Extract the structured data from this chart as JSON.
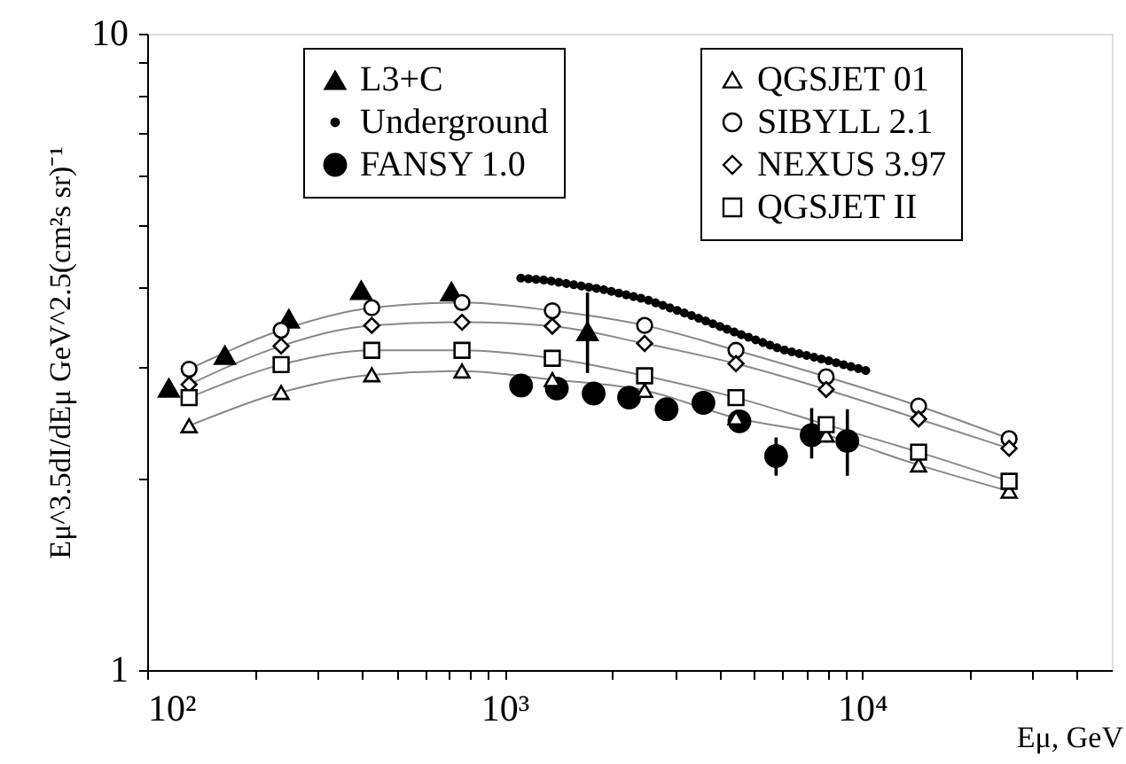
{
  "chart_data": {
    "type": "scatter",
    "xlabel": "Eμ, GeV",
    "ylabel": "Eμ^3.5dI/dEμ GeV^2.5(cm²s sr)⁻¹",
    "log": "xy",
    "xlim": [
      100,
      50000
    ],
    "ylim": [
      1,
      10
    ],
    "xticks": [
      {
        "value": 100,
        "label": "10²"
      },
      {
        "value": 200,
        "label": null
      },
      {
        "value": 300,
        "label": null
      },
      {
        "value": 400,
        "label": null
      },
      {
        "value": 500,
        "label": null
      },
      {
        "value": 600,
        "label": null
      },
      {
        "value": 700,
        "label": null
      },
      {
        "value": 800,
        "label": null
      },
      {
        "value": 900,
        "label": null
      },
      {
        "value": 1000,
        "label": "10³"
      },
      {
        "value": 2000,
        "label": null
      },
      {
        "value": 3000,
        "label": null
      },
      {
        "value": 4000,
        "label": null
      },
      {
        "value": 5000,
        "label": null
      },
      {
        "value": 6000,
        "label": null
      },
      {
        "value": 7000,
        "label": null
      },
      {
        "value": 8000,
        "label": null
      },
      {
        "value": 9000,
        "label": null
      },
      {
        "value": 10000,
        "label": "10⁴"
      },
      {
        "value": 20000,
        "label": null
      },
      {
        "value": 30000,
        "label": null
      },
      {
        "value": 40000,
        "label": null
      }
    ],
    "yticks": [
      1,
      {
        "value": 2,
        "label": null
      },
      {
        "value": 3,
        "label": null
      },
      {
        "value": 4,
        "label": null
      },
      {
        "value": 5,
        "label": null
      },
      {
        "value": 6,
        "label": null
      },
      {
        "value": 7,
        "label": null
      },
      {
        "value": 8,
        "label": null
      },
      {
        "value": 9,
        "label": null
      },
      10
    ],
    "grid": false,
    "legend": "top",
    "series": [
      {
        "name": "L3+C",
        "marker": "triangle",
        "color": "#000000",
        "x": [
          115,
          165,
          249,
          397,
          710,
          1706
        ],
        "values": [
          2.78,
          3.13,
          3.57,
          3.96,
          3.94,
          3.41
        ],
        "errors": [
          null,
          null,
          null,
          null,
          null,
          [
            2.93,
            3.92
          ]
        ]
      },
      {
        "name": "Underground",
        "type": "line",
        "line_style": "dotted",
        "marker": "none",
        "color": "#000000",
        "x": [
          1110,
          1300,
          1900,
          2500,
          3365,
          4500,
          5970,
          8110,
          10380
        ],
        "values": [
          4.13,
          4.1,
          3.96,
          3.82,
          3.6,
          3.38,
          3.19,
          3.06,
          2.95
        ]
      },
      {
        "name": "FANSY 1.0",
        "marker": "circle",
        "color": "#000000",
        "x": [
          1112,
          1400,
          1775,
          2230,
          2840,
          3600,
          4540,
          5750,
          7230,
          9100
        ],
        "values": [
          2.8,
          2.77,
          2.72,
          2.68,
          2.57,
          2.63,
          2.46,
          2.17,
          2.34,
          2.29
        ],
        "errors": [
          null,
          null,
          null,
          null,
          null,
          null,
          null,
          [
            2.02,
            2.32
          ],
          [
            2.15,
            2.58
          ],
          [
            2.02,
            2.57
          ]
        ]
      },
      {
        "name": "QGSJET 01",
        "type": "line",
        "marker": "triangle",
        "color": "#000000",
        "x": [
          131,
          237,
          425,
          760,
          1360,
          2465,
          4440,
          7940,
          14400,
          25800
        ],
        "values": [
          2.42,
          2.73,
          2.91,
          2.95,
          2.86,
          2.75,
          2.49,
          2.34,
          2.1,
          1.91
        ]
      },
      {
        "name": "SIBYLL 2.1",
        "type": "line",
        "marker": "circle",
        "color": "#000000",
        "x": [
          131,
          237,
          425,
          760,
          1360,
          2465,
          4440,
          7940,
          14400,
          25800
        ],
        "values": [
          2.97,
          3.42,
          3.71,
          3.78,
          3.67,
          3.48,
          3.18,
          2.89,
          2.6,
          2.31
        ]
      },
      {
        "name": "NEXUS 3.97",
        "type": "line",
        "marker": "diamond",
        "color": "#000000",
        "x": [
          131,
          237,
          425,
          760,
          1360,
          2465,
          4440,
          7940,
          14400,
          25800
        ],
        "values": [
          2.81,
          3.23,
          3.48,
          3.52,
          3.47,
          3.26,
          3.03,
          2.76,
          2.48,
          2.23
        ]
      },
      {
        "name": "QGSJET II",
        "type": "line",
        "marker": "square",
        "color": "#000000",
        "x": [
          131,
          237,
          425,
          760,
          1360,
          2465,
          4440,
          7940,
          14400,
          25800
        ],
        "values": [
          2.68,
          3.02,
          3.18,
          3.18,
          3.09,
          2.9,
          2.68,
          2.43,
          2.2,
          1.98
        ]
      }
    ]
  }
}
